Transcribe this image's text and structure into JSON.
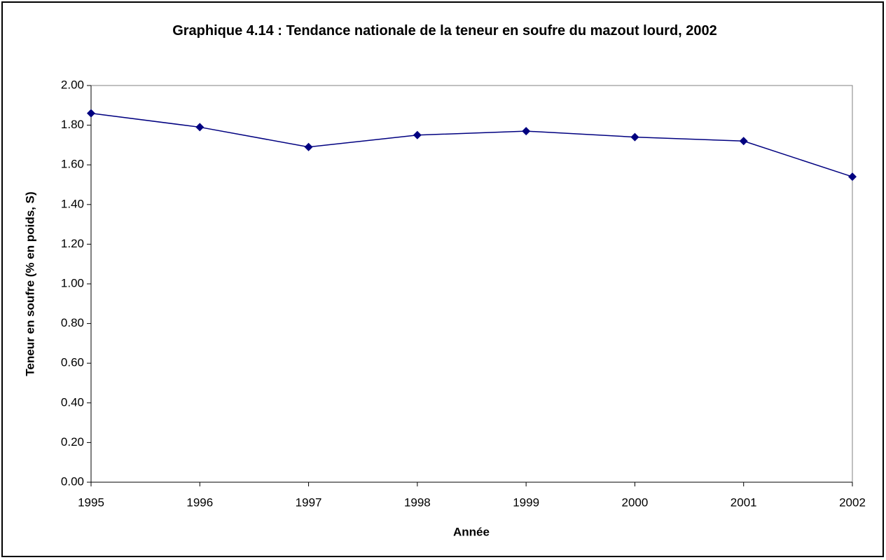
{
  "chart_data": {
    "type": "line",
    "title": "Graphique 4.14 : Tendance nationale de la teneur en soufre du mazout lourd, 2002",
    "x_label": "Année",
    "y_label": "Teneur en soufre (% en poids, S)",
    "x": [
      1995,
      1996,
      1997,
      1998,
      1999,
      2000,
      2001,
      2002
    ],
    "series": [
      {
        "color": "#000080",
        "values": [
          1.86,
          1.79,
          1.69,
          1.75,
          1.77,
          1.74,
          1.72,
          1.54
        ]
      }
    ],
    "xlim": [
      1995,
      2002
    ],
    "xticks": [
      1995,
      1996,
      1997,
      1998,
      1999,
      2000,
      2001,
      2002
    ],
    "ylim": [
      0,
      2
    ],
    "yticks": [
      {
        "value": 0,
        "label": "0.00"
      },
      {
        "value": 0.2,
        "label": "0.20"
      },
      {
        "value": 0.4,
        "label": "0.40"
      },
      {
        "value": 0.6,
        "label": "0.60"
      },
      {
        "value": 0.8,
        "label": "0.80"
      },
      {
        "value": 1,
        "label": "1.00"
      },
      {
        "value": 1.2,
        "label": "1.20"
      },
      {
        "value": 1.4,
        "label": "1.40"
      },
      {
        "value": 1.6,
        "label": "1.60"
      },
      {
        "value": 1.8,
        "label": "1.80"
      },
      {
        "value": 2,
        "label": "2.00"
      }
    ],
    "grid": false
  }
}
